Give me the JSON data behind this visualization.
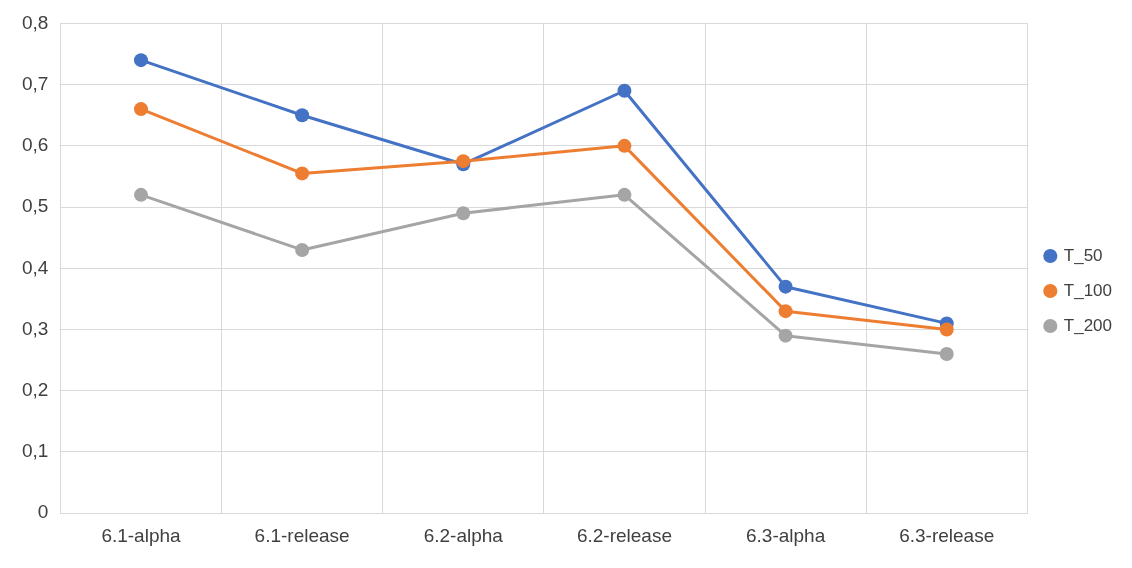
{
  "chart_data": {
    "type": "line",
    "categories": [
      "6.1-alpha",
      "6.1-release",
      "6.2-alpha",
      "6.2-release",
      "6.3-alpha",
      "6.3-release"
    ],
    "series": [
      {
        "name": "T_50",
        "color": "#4472c4",
        "values": [
          0.74,
          0.65,
          0.57,
          0.69,
          0.37,
          0.31
        ]
      },
      {
        "name": "T_100",
        "color": "#ed7d31",
        "values": [
          0.66,
          0.555,
          0.575,
          0.6,
          0.33,
          0.3
        ]
      },
      {
        "name": "T_200",
        "color": "#a5a5a5",
        "values": [
          0.52,
          0.43,
          0.49,
          0.52,
          0.29,
          0.26
        ]
      }
    ],
    "ylim": [
      0,
      0.8
    ],
    "yticks": [
      {
        "value": 0,
        "label": "0"
      },
      {
        "value": 0.1,
        "label": "0,1"
      },
      {
        "value": 0.2,
        "label": "0,2"
      },
      {
        "value": 0.3,
        "label": "0,3"
      },
      {
        "value": 0.4,
        "label": "0,4"
      },
      {
        "value": 0.5,
        "label": "0,5"
      },
      {
        "value": 0.6,
        "label": "0,6"
      },
      {
        "value": 0.7,
        "label": "0,7"
      },
      {
        "value": 0.8,
        "label": "0,8"
      }
    ],
    "grid": true,
    "legend": "right",
    "marker": "circle",
    "line_style": "solid"
  }
}
